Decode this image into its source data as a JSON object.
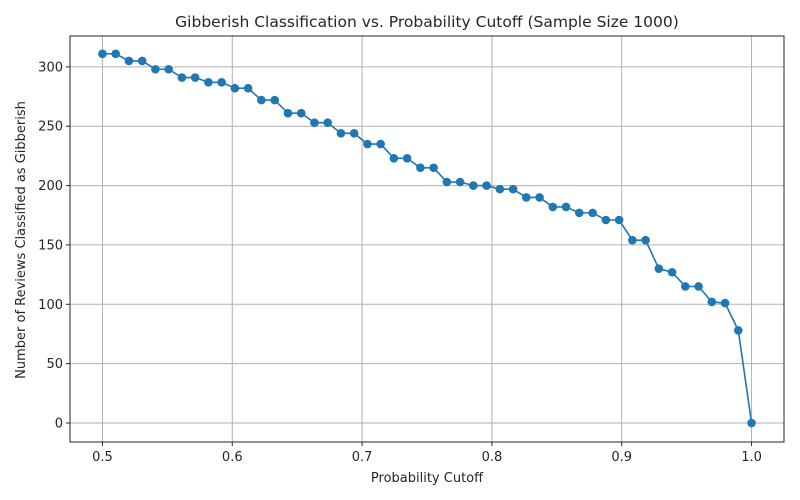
{
  "chart_data": {
    "type": "line",
    "title": "Gibberish Classification vs. Probability Cutoff (Sample Size 1000)",
    "xlabel": "Probability Cutoff",
    "ylabel": "Number of Reviews Classified as Gibberish",
    "xlim": [
      0.475,
      1.025
    ],
    "ylim": [
      -16,
      326
    ],
    "xticks": [
      0.5,
      0.6,
      0.7,
      0.8,
      0.9,
      1.0
    ],
    "xtick_labels": [
      "0.5",
      "0.6",
      "0.7",
      "0.8",
      "0.9",
      "1.0"
    ],
    "yticks": [
      0,
      50,
      100,
      150,
      200,
      250,
      300
    ],
    "ytick_labels": [
      "0",
      "50",
      "100",
      "150",
      "200",
      "250",
      "300"
    ],
    "grid": true,
    "marker": "circle",
    "color": "#1f77b4",
    "series": [
      {
        "name": "",
        "x": [
          0.5,
          0.5102,
          0.5204,
          0.5306,
          0.5408,
          0.551,
          0.5612,
          0.5714,
          0.5816,
          0.5918,
          0.602,
          0.6122,
          0.6224,
          0.6327,
          0.6429,
          0.6531,
          0.6633,
          0.6735,
          0.6837,
          0.6939,
          0.7041,
          0.7143,
          0.7245,
          0.7347,
          0.7449,
          0.7551,
          0.7653,
          0.7755,
          0.7857,
          0.7959,
          0.8061,
          0.8163,
          0.8265,
          0.8367,
          0.8469,
          0.8571,
          0.8673,
          0.8776,
          0.8878,
          0.898,
          0.9082,
          0.9184,
          0.9286,
          0.9388,
          0.949,
          0.9592,
          0.9694,
          0.9796,
          0.9898,
          1.0
        ],
        "y": [
          311,
          311,
          305,
          305,
          298,
          298,
          291,
          291,
          287,
          287,
          282,
          282,
          272,
          272,
          261,
          261,
          253,
          253,
          244,
          244,
          235,
          235,
          223,
          223,
          215,
          215,
          203,
          203,
          200,
          200,
          197,
          197,
          190,
          190,
          182,
          182,
          177,
          177,
          171,
          171,
          154,
          154,
          130,
          127,
          115,
          115,
          102,
          101,
          78,
          0
        ]
      }
    ]
  }
}
